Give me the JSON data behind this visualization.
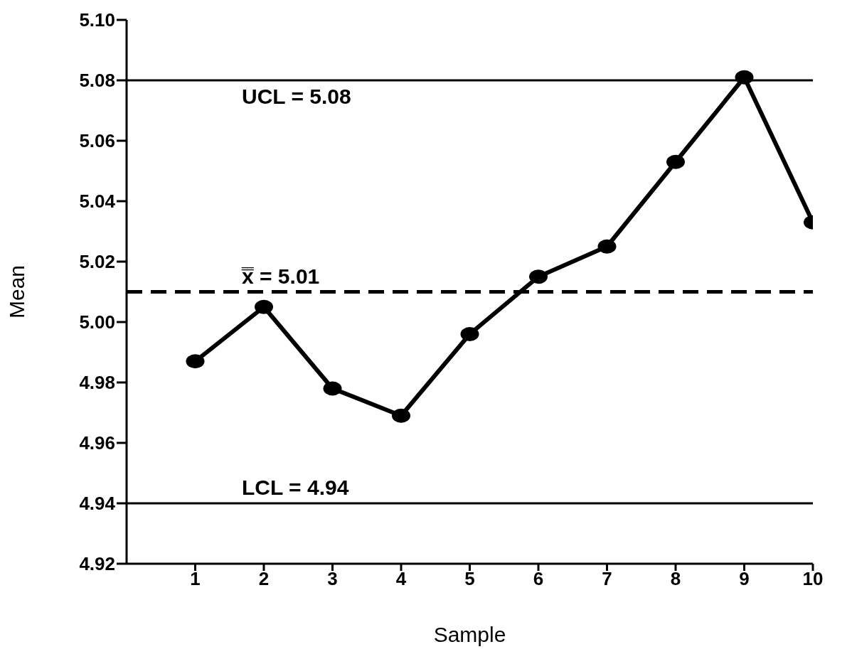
{
  "chart_data": {
    "type": "line",
    "xlabel": "Sample",
    "ylabel": "Mean",
    "x": [
      1,
      2,
      3,
      4,
      5,
      6,
      7,
      8,
      9,
      10
    ],
    "series": [
      {
        "color": "#000000",
        "values": [
          4.987,
          5.005,
          4.978,
          4.969,
          4.996,
          5.015,
          5.025,
          5.053,
          5.081,
          5.033
        ]
      }
    ],
    "xlim": [
      0,
      10
    ],
    "xticks": [
      1,
      2,
      3,
      4,
      5,
      6,
      7,
      8,
      9,
      10
    ],
    "ylim": [
      4.92,
      5.1
    ],
    "yticks": [
      {
        "value": 4.92,
        "label": "4.92"
      },
      {
        "value": 4.94,
        "label": "4.94"
      },
      {
        "value": 4.96,
        "label": "4.96"
      },
      {
        "value": 4.98,
        "label": "4.98"
      },
      {
        "value": 5.0,
        "label": "5.00"
      },
      {
        "value": 5.02,
        "label": "5.02"
      },
      {
        "value": 5.04,
        "label": "5.04"
      },
      {
        "value": 5.06,
        "label": "5.06"
      },
      {
        "value": 5.08,
        "label": "5.08"
      },
      {
        "value": 5.1,
        "label": "5.10"
      }
    ],
    "ref_lines": [
      {
        "axis": "y",
        "value": 5.08,
        "label": "UCL = 5.08",
        "color": "#000000",
        "line_style": "solid"
      },
      {
        "axis": "y",
        "value": 5.01,
        "label": "x̿ = 5.01",
        "color": "#000000",
        "line_style": "dashed"
      },
      {
        "axis": "y",
        "value": 4.94,
        "label": "LCL = 4.94",
        "color": "#000000",
        "line_style": "solid"
      }
    ],
    "grid": false,
    "legend": false,
    "marker": "circle",
    "line_style": "solid"
  }
}
